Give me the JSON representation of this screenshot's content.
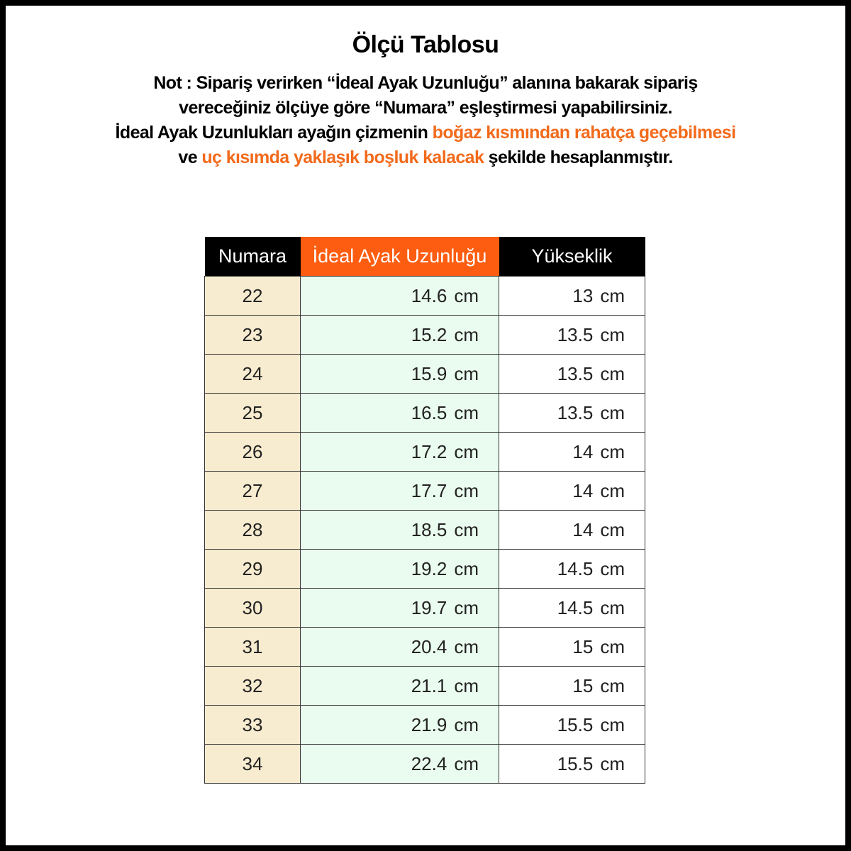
{
  "title": "Ölçü Tablosu",
  "note": {
    "line1": "Not : Sipariş verirken “İdeal Ayak Uzunluğu” alanına bakarak sipariş",
    "line2": "vereceğiniz ölçüye göre “Numara” eşleştirmesi yapabilirsiniz.",
    "line3_a": "İdeal Ayak Uzunlukları ayağın çizmenin ",
    "line3_b": "boğaz kısmından rahatça geçebilmesi",
    "line4_a": "ve ",
    "line4_b": "uç kısımda yaklaşık boşluk kalacak",
    "line4_c": " şekilde hesaplanmıştır."
  },
  "colors": {
    "accent": "#fd5d10",
    "numara_bg": "#f8ecd0",
    "length_bg": "#eafcef",
    "header_bg": "#000000"
  },
  "table": {
    "headers": [
      "Numara",
      "İdeal Ayak Uzunluğu",
      "Yükseklik"
    ],
    "unit": "cm",
    "rows": [
      {
        "numara": "22",
        "uzunluk": "14.6",
        "yukseklik": "13"
      },
      {
        "numara": "23",
        "uzunluk": "15.2",
        "yukseklik": "13.5"
      },
      {
        "numara": "24",
        "uzunluk": "15.9",
        "yukseklik": "13.5"
      },
      {
        "numara": "25",
        "uzunluk": "16.5",
        "yukseklik": "13.5"
      },
      {
        "numara": "26",
        "uzunluk": "17.2",
        "yukseklik": "14"
      },
      {
        "numara": "27",
        "uzunluk": "17.7",
        "yukseklik": "14"
      },
      {
        "numara": "28",
        "uzunluk": "18.5",
        "yukseklik": "14"
      },
      {
        "numara": "29",
        "uzunluk": "19.2",
        "yukseklik": "14.5"
      },
      {
        "numara": "30",
        "uzunluk": "19.7",
        "yukseklik": "14.5"
      },
      {
        "numara": "31",
        "uzunluk": "20.4",
        "yukseklik": "15"
      },
      {
        "numara": "32",
        "uzunluk": "21.1",
        "yukseklik": "15"
      },
      {
        "numara": "33",
        "uzunluk": "21.9",
        "yukseklik": "15.5"
      },
      {
        "numara": "34",
        "uzunluk": "22.4",
        "yukseklik": "15.5"
      }
    ]
  }
}
